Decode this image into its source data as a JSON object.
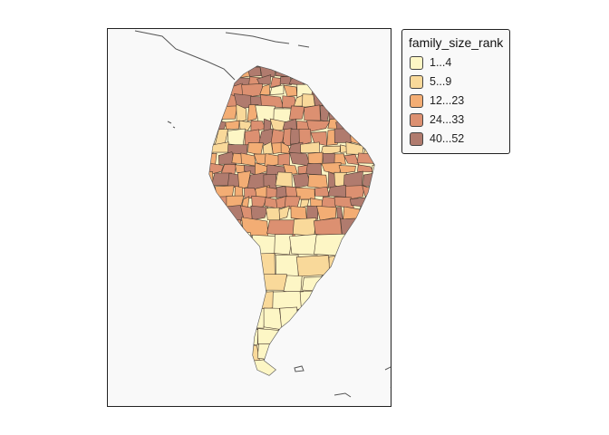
{
  "legend": {
    "title": "family_size_rank",
    "items": [
      {
        "label": "1...4",
        "color": "#fdf6c5"
      },
      {
        "label": "5...9",
        "color": "#f9d99a"
      },
      {
        "label": "12...23",
        "color": "#f3ad74"
      },
      {
        "label": "24...33",
        "color": "#dc9071"
      },
      {
        "label": "40...52",
        "color": "#b07b6e"
      }
    ]
  },
  "colors": {
    "map_background": "#f9f9f9",
    "border": "#555555",
    "cell_stroke": "#4a3a30"
  }
}
